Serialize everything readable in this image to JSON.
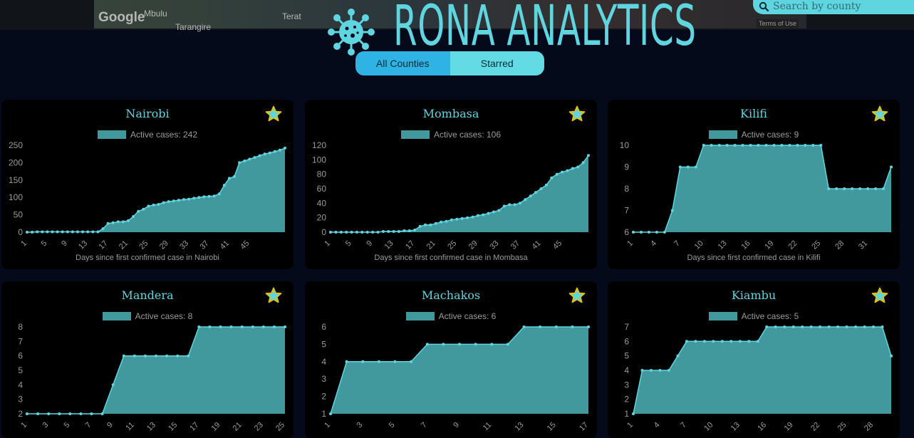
{
  "header": {
    "map": {
      "brand": "Google",
      "places": [
        "Mbulu",
        "Terat",
        "Tarangire"
      ],
      "terms": "Terms of Use"
    },
    "title": "RONA ANALYTICS",
    "search_placeholder": "Search by county",
    "tabs": [
      {
        "label": "All Counties"
      },
      {
        "label": "Starred"
      }
    ]
  },
  "colors": {
    "accent": "#5fd5e0",
    "fill": "#41999d",
    "star": "#5fd5e0",
    "star_outline": "#e5c100"
  },
  "icons": {
    "logo": "virus-icon",
    "search": "search-icon",
    "star": "star-icon"
  },
  "cards": [
    {
      "title": "Nairobi",
      "legend": "Active cases: 242",
      "xlabel": "Days since first confirmed case in Nairobi"
    },
    {
      "title": "Mombasa",
      "legend": "Active cases: 106",
      "xlabel": "Days since first confirmed case in Mombasa"
    },
    {
      "title": "Kilifi",
      "legend": "Active cases: 9",
      "xlabel": "Days since first confirmed case in Kilifi"
    },
    {
      "title": "Mandera",
      "legend": "Active cases: 8",
      "xlabel": ""
    },
    {
      "title": "Machakos",
      "legend": "Active cases: 6",
      "xlabel": ""
    },
    {
      "title": "Kiambu",
      "legend": "Active cases: 5",
      "xlabel": ""
    }
  ],
  "chart_data": [
    {
      "type": "area",
      "title": "Nairobi",
      "series": [
        {
          "name": "Active cases: 242",
          "values": [
            0,
            0,
            1,
            1,
            1,
            1,
            1,
            1,
            1,
            1,
            1,
            1,
            1,
            1,
            1,
            10,
            25,
            27,
            30,
            30,
            33,
            45,
            60,
            66,
            75,
            78,
            80,
            85,
            88,
            90,
            92,
            94,
            95,
            98,
            100,
            102,
            103,
            104,
            110,
            135,
            155,
            160,
            200,
            205,
            210,
            215,
            220,
            225,
            228,
            232,
            236,
            242
          ]
        }
      ],
      "x_ticks": [
        1,
        5,
        9,
        13,
        17,
        21,
        25,
        29,
        33,
        37,
        41,
        45
      ],
      "ylim": [
        0,
        250
      ],
      "y_ticks": [
        0,
        50,
        100,
        150,
        200,
        250
      ]
    },
    {
      "type": "area",
      "title": "Mombasa",
      "series": [
        {
          "name": "Active cases: 106",
          "values": [
            0,
            0,
            0,
            0,
            0,
            0,
            0,
            0,
            0,
            0,
            1,
            1,
            1,
            1,
            2,
            2,
            3,
            8,
            10,
            10,
            12,
            14,
            15,
            17,
            18,
            19,
            20,
            21,
            23,
            24,
            26,
            28,
            30,
            36,
            38,
            38,
            40,
            45,
            50,
            55,
            60,
            65,
            75,
            80,
            83,
            85,
            88,
            90,
            96,
            106
          ]
        }
      ],
      "x_ticks": [
        1,
        5,
        9,
        13,
        17,
        21,
        25,
        29,
        33,
        37,
        41,
        45
      ],
      "ylim": [
        0,
        120
      ],
      "y_ticks": [
        0,
        20,
        40,
        60,
        80,
        100,
        120
      ]
    },
    {
      "type": "area",
      "title": "Kilifi",
      "series": [
        {
          "name": "Active cases: 9",
          "values": [
            6,
            6,
            6,
            6,
            6,
            7,
            9,
            9,
            9,
            10,
            10,
            10,
            10,
            10,
            10,
            10,
            10,
            10,
            10,
            10,
            10,
            10,
            10,
            10,
            10,
            8,
            8,
            8,
            8,
            8,
            8,
            8,
            8,
            9
          ]
        }
      ],
      "x_ticks": [
        1,
        4,
        7,
        10,
        13,
        16,
        19,
        22,
        25,
        28,
        31
      ],
      "ylim": [
        6,
        10
      ],
      "y_ticks": [
        6,
        7,
        8,
        9,
        10
      ]
    },
    {
      "type": "area",
      "title": "Mandera",
      "series": [
        {
          "name": "Active cases: 8",
          "values": [
            2,
            2,
            2,
            2,
            2,
            2,
            2,
            2,
            4,
            6,
            6,
            6,
            6,
            6,
            6,
            6,
            8,
            8,
            8,
            8,
            8,
            8,
            8,
            8,
            8
          ]
        }
      ],
      "x_ticks": [
        1,
        3,
        5,
        7,
        9,
        11,
        13,
        15,
        17,
        19,
        21,
        23,
        25
      ],
      "ylim": [
        2,
        8
      ],
      "y_ticks": [
        2,
        3,
        4,
        5,
        6,
        7,
        8
      ]
    },
    {
      "type": "area",
      "title": "Machakos",
      "series": [
        {
          "name": "Active cases: 6",
          "values": [
            1,
            4,
            4,
            4,
            4,
            4,
            5,
            5,
            5,
            5,
            5,
            5,
            6,
            6,
            6,
            6,
            6
          ]
        }
      ],
      "x_ticks": [
        1,
        3,
        5,
        7,
        9,
        11,
        13,
        15,
        17
      ],
      "ylim": [
        1,
        6
      ],
      "y_ticks": [
        1,
        2,
        3,
        4,
        5,
        6
      ]
    },
    {
      "type": "area",
      "title": "Kiambu",
      "series": [
        {
          "name": "Active cases: 5",
          "values": [
            1,
            4,
            4,
            4,
            4,
            5,
            6,
            6,
            6,
            6,
            6,
            6,
            6,
            6,
            6,
            7,
            7,
            7,
            7,
            7,
            7,
            7,
            7,
            7,
            7,
            7,
            7,
            7,
            7,
            5
          ]
        }
      ],
      "x_ticks": [
        1,
        4,
        7,
        10,
        13,
        16,
        19,
        22,
        25,
        28
      ],
      "ylim": [
        1,
        7
      ],
      "y_ticks": [
        1,
        2,
        3,
        4,
        5,
        6,
        7
      ]
    }
  ]
}
